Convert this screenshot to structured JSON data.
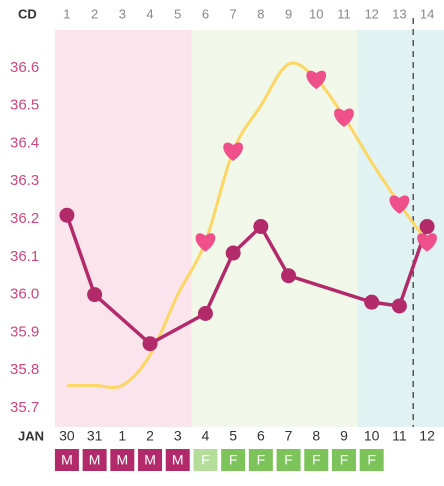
{
  "chart_data": {
    "type": "line",
    "top_axis_label": "CD",
    "categories": [
      "1",
      "2",
      "3",
      "4",
      "5",
      "6",
      "7",
      "8",
      "9",
      "10",
      "11",
      "12",
      "13",
      "14"
    ],
    "month_label": "JAN",
    "dates": [
      "30",
      "31",
      "1",
      "2",
      "3",
      "4",
      "5",
      "6",
      "7",
      "8",
      "9",
      "10",
      "11",
      "12"
    ],
    "xlim": [
      0.57,
      14.61
    ],
    "ylim": [
      35.65,
      36.7
    ],
    "yticks": [
      {
        "value": 35.7,
        "label": "35.7"
      },
      {
        "value": 35.8,
        "label": "35.8"
      },
      {
        "value": 35.9,
        "label": "35.9"
      },
      {
        "value": 36.0,
        "label": "36.0"
      },
      {
        "value": 36.1,
        "label": "36.1"
      },
      {
        "value": 36.2,
        "label": "36.2"
      },
      {
        "value": 36.3,
        "label": "36.3"
      },
      {
        "value": 36.4,
        "label": "36.4"
      },
      {
        "value": 36.5,
        "label": "36.5"
      },
      {
        "value": 36.6,
        "label": "36.6"
      }
    ],
    "phases": [
      {
        "start": 0.57,
        "end": 5.5,
        "color": "#fce4ec"
      },
      {
        "start": 5.5,
        "end": 11.5,
        "color": "#f1f8e9"
      },
      {
        "start": 11.5,
        "end": 14.61,
        "color": "#e0f2f1"
      }
    ],
    "marker_line_x": 13.5,
    "series": [
      {
        "color": "#fdd663",
        "values": [
          35.76,
          35.76,
          35.76,
          35.84,
          36.0,
          36.14,
          36.38,
          36.5,
          36.61,
          36.57,
          36.47,
          36.35,
          36.24,
          36.14
        ]
      },
      {
        "color": "#f0508a",
        "marker": "heart",
        "values": [
          null,
          null,
          null,
          null,
          null,
          36.14,
          36.38,
          null,
          null,
          36.57,
          36.47,
          null,
          36.24,
          36.14
        ]
      },
      {
        "color": "#b32a6a",
        "marker": "circle",
        "x": [
          1,
          2,
          4,
          6,
          7,
          8,
          9,
          12,
          13,
          14
        ],
        "values": [
          36.21,
          36.0,
          35.87,
          35.95,
          36.11,
          36.18,
          36.05,
          35.98,
          35.97,
          36.18
        ]
      }
    ],
    "flow": {
      "labels": [
        "M",
        "M",
        "M",
        "M",
        "M",
        "F",
        "F",
        "F",
        "F",
        "F",
        "F",
        "F"
      ],
      "colors": [
        "#b32a6a",
        "#b32a6a",
        "#b32a6a",
        "#b32a6a",
        "#b32a6a",
        "#b5dd9a",
        "#7cc35a",
        "#7cc35a",
        "#7cc35a",
        "#7cc35a",
        "#7cc35a",
        "#7cc35a"
      ]
    }
  }
}
